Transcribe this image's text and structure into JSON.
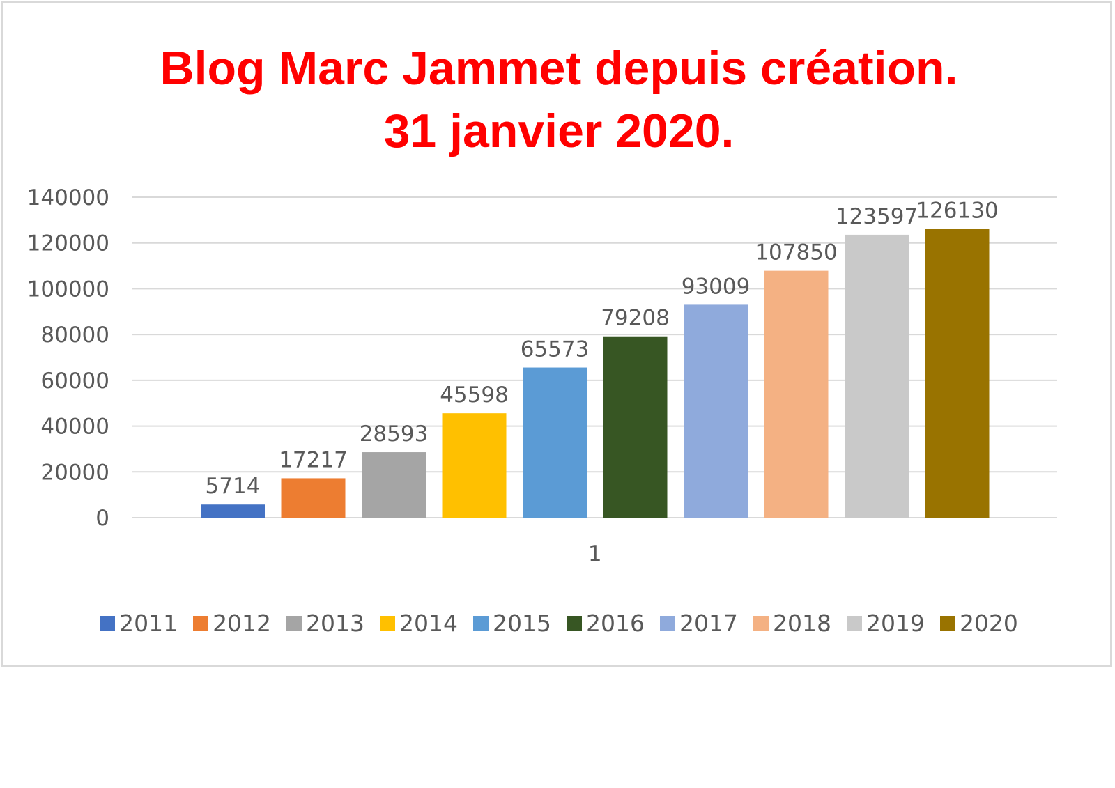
{
  "chart_data": {
    "type": "bar",
    "title_lines": [
      "Blog Marc Jammet depuis création.",
      "31 janvier 2020."
    ],
    "categories": [
      "1"
    ],
    "yticks": [
      0,
      20000,
      40000,
      60000,
      80000,
      100000,
      120000,
      140000
    ],
    "ylim": [
      0,
      140000
    ],
    "grid": true,
    "legend_position": "bottom",
    "series": [
      {
        "name": "2011",
        "values": [
          5714
        ],
        "color": "#4472c4"
      },
      {
        "name": "2012",
        "values": [
          17217
        ],
        "color": "#ed7d31"
      },
      {
        "name": "2013",
        "values": [
          28593
        ],
        "color": "#a5a5a5"
      },
      {
        "name": "2014",
        "values": [
          45598
        ],
        "color": "#ffc000"
      },
      {
        "name": "2015",
        "values": [
          65573
        ],
        "color": "#5b9bd5"
      },
      {
        "name": "2016",
        "values": [
          79208
        ],
        "color": "#375623"
      },
      {
        "name": "2017",
        "values": [
          93009
        ],
        "color": "#8faadc"
      },
      {
        "name": "2018",
        "values": [
          107850
        ],
        "color": "#f4b183"
      },
      {
        "name": "2019",
        "values": [
          123597
        ],
        "color": "#c9c9c9"
      },
      {
        "name": "2020",
        "values": [
          126130
        ],
        "color": "#997300"
      }
    ]
  }
}
